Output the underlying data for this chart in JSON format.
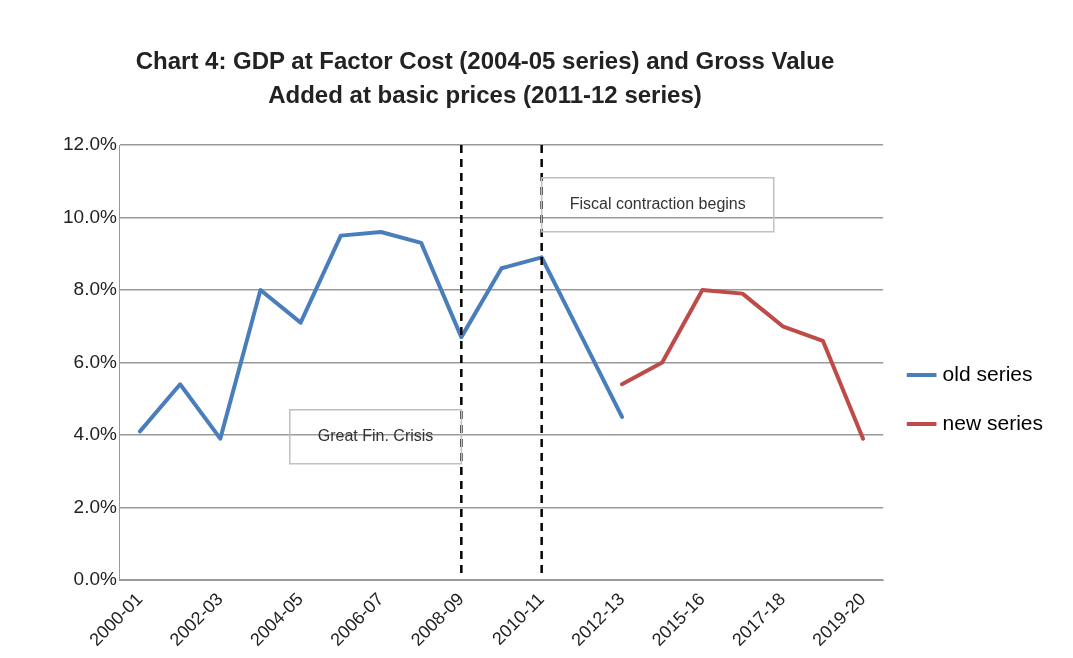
{
  "chart_data": {
    "type": "line",
    "title": "Chart 4: GDP at Factor Cost (2004-05 series) and Gross Value Added at basic prices (2011-12 series)",
    "categories": [
      "2000-01",
      null,
      "2002-03",
      null,
      "2004-05",
      null,
      "2006-07",
      null,
      "2008-09",
      null,
      "2010-11",
      null,
      "2012-13",
      null,
      "2015-16",
      null,
      "2017-18",
      null,
      "2019-20"
    ],
    "series": [
      {
        "name": "old series",
        "color": "#4a7ebb",
        "values": [
          4.1,
          5.4,
          3.9,
          8.0,
          7.1,
          9.5,
          9.6,
          9.3,
          6.7,
          8.6,
          8.9,
          6.7,
          4.5,
          null,
          null,
          null,
          null,
          null,
          null
        ]
      },
      {
        "name": "new series",
        "color": "#be4b48",
        "values": [
          null,
          null,
          null,
          null,
          null,
          null,
          null,
          null,
          null,
          null,
          null,
          null,
          5.4,
          6.0,
          8.0,
          7.9,
          7.0,
          6.6,
          3.9
        ]
      }
    ],
    "ylim": [
      0,
      12
    ],
    "yticks": [
      {
        "value": 0,
        "label": "0.0%"
      },
      {
        "value": 2,
        "label": "2.0%"
      },
      {
        "value": 4,
        "label": "4.0%"
      },
      {
        "value": 6,
        "label": "6.0%"
      },
      {
        "value": 8,
        "label": "8.0%"
      },
      {
        "value": 10,
        "label": "10.0%"
      },
      {
        "value": 12,
        "label": "12.0%"
      }
    ],
    "ref_lines": [
      {
        "axis": "x",
        "value": "2008-09",
        "label": "Great Fin. Crisis",
        "color": "#000000",
        "line_style": "dashed"
      },
      {
        "axis": "x",
        "value": "2010-11",
        "label": "Fiscal contraction begins",
        "color": "#000000",
        "line_style": "dashed"
      }
    ],
    "grid": "y",
    "legend": "right",
    "marker": "none",
    "line_style": "solid"
  }
}
